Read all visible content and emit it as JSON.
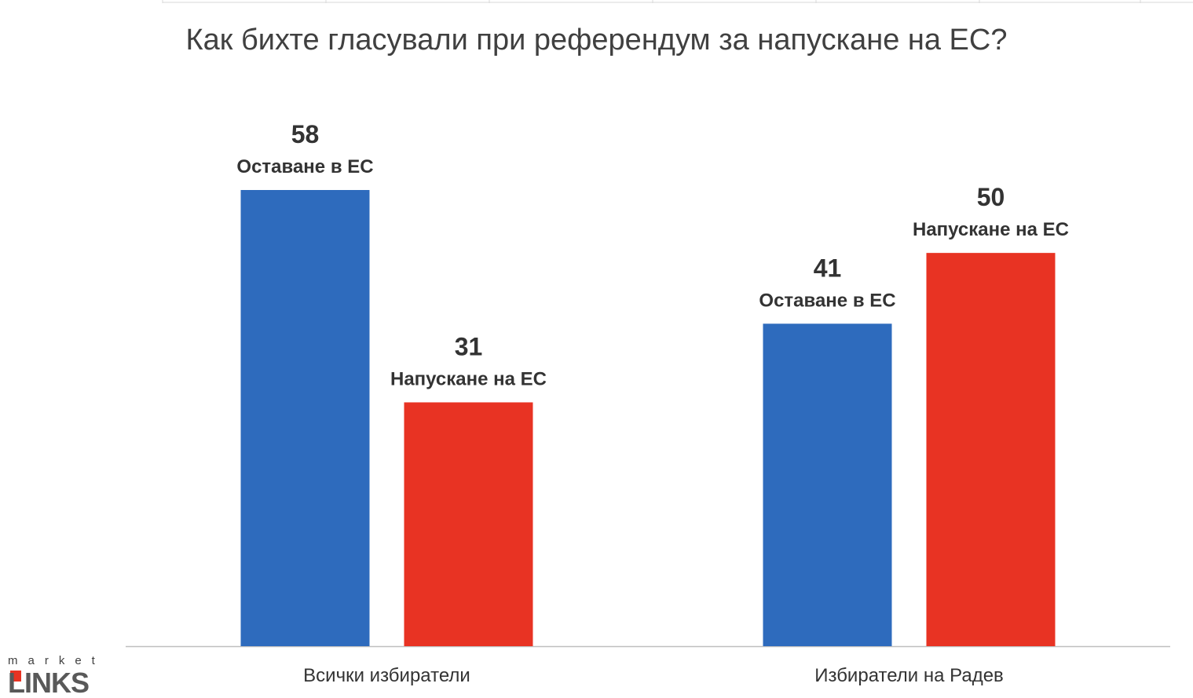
{
  "chart_data": {
    "type": "bar",
    "title": "Как бихте гласували при референдум за напускане на ЕС?",
    "categories": [
      "Всички избиратели",
      "Избиратели на Радев"
    ],
    "series": [
      {
        "name": "Оставане в ЕС",
        "values": [
          58,
          41
        ],
        "color": "#2E6BBD"
      },
      {
        "name": "Напускане на ЕС",
        "values": [
          31,
          50
        ],
        "color": "#E83323"
      }
    ],
    "data_labels": [
      [
        "Оставане в ЕС",
        "Напускане на ЕС"
      ],
      [
        "Оставане в ЕС",
        "Напускане на ЕС"
      ]
    ],
    "ylim": [
      0,
      100
    ],
    "grid": false,
    "legend": "none",
    "colors": {
      "text_dark": "#333333",
      "title": "#404040",
      "axis": "#BFBFBF"
    }
  },
  "logo": {
    "top_text": "market",
    "main_text": "LINKS",
    "icon": "market-links-logo"
  }
}
